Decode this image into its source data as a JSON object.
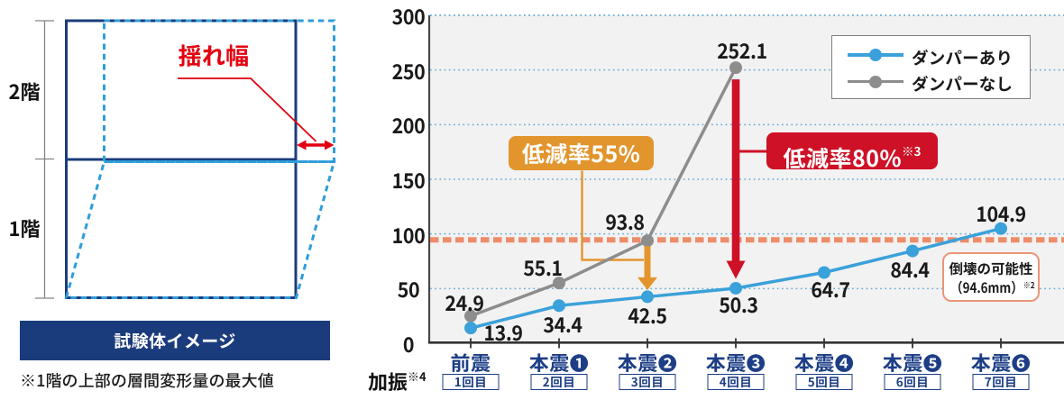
{
  "diagram": {
    "floor2_label": "2階",
    "floor1_label": "1階",
    "sway_label": "揺れ幅",
    "caption": "試験体イメージ",
    "footnote": "※1階の上部の層間変形量の最大値",
    "solid_frame_color": "#1b3c7c",
    "deformed_frame_color": "#2f9dda",
    "sway_color": "#e3000f"
  },
  "chart_data": {
    "type": "line",
    "title": "",
    "xlabel": "",
    "ylabel": "",
    "ylim": [
      0,
      300
    ],
    "ytick_interval": 50,
    "grid": "dotted-horizontal",
    "legend_position": "top-right",
    "categories": [
      "前震",
      "本震❶",
      "本震❷",
      "本震❸",
      "本震❹",
      "本震❺",
      "本震❻"
    ],
    "category_sublabels": [
      "1回目",
      "2回目",
      "3回目",
      "4回目",
      "5回目",
      "6回目",
      "7回目"
    ],
    "x_axis_title": "加振",
    "x_axis_title_note": "※4",
    "series": [
      {
        "name": "ダンパーあり",
        "color": "#3ba1da",
        "values": [
          13.9,
          34.4,
          42.5,
          50.3,
          64.7,
          84.4,
          104.9
        ]
      },
      {
        "name": "ダンパーなし",
        "color": "#8d8d8d",
        "values": [
          24.9,
          55.1,
          93.8,
          252.1,
          null,
          null,
          null
        ]
      }
    ],
    "threshold": {
      "value": 94.6,
      "color": "#ec8c68",
      "label_line1": "倒壊の可能性",
      "label_line2": "（94.6mm）",
      "label_note": "※2"
    },
    "annotations": [
      {
        "label": "低減率55%",
        "note": "",
        "color": "#e2952d",
        "category_index": 2
      },
      {
        "label": "低減率80%",
        "note": "※3",
        "color": "#ce1126",
        "category_index": 3
      }
    ],
    "axis_color": "#333333",
    "gridline_color": "#62a9d8",
    "tick_label_color": "#1a1a1a",
    "category_label_color": "#1d3e86"
  }
}
